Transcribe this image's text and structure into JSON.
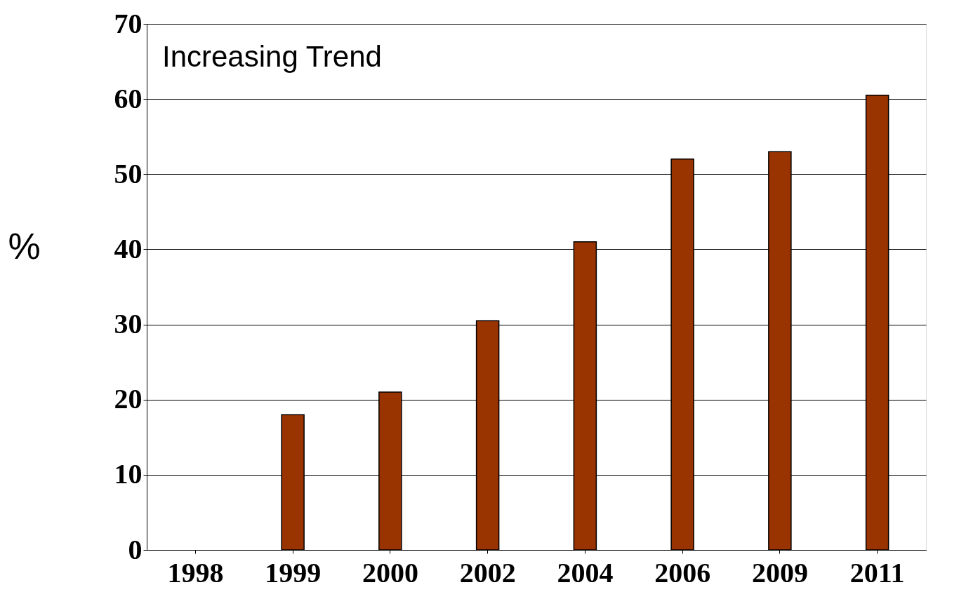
{
  "chart_data": {
    "type": "bar",
    "ylabel": "%",
    "categories": [
      "1998",
      "1999",
      "2000",
      "2002",
      "2004",
      "2006",
      "2009",
      "2011"
    ],
    "values": [
      0,
      18,
      21,
      30.5,
      41,
      52,
      53,
      60.5
    ],
    "color": "#993300",
    "ylim": [
      0,
      70
    ],
    "yticks": [
      0,
      10,
      20,
      30,
      40,
      50,
      60,
      70
    ],
    "grid": "y",
    "annotations": [
      "Increasing Trend"
    ]
  }
}
